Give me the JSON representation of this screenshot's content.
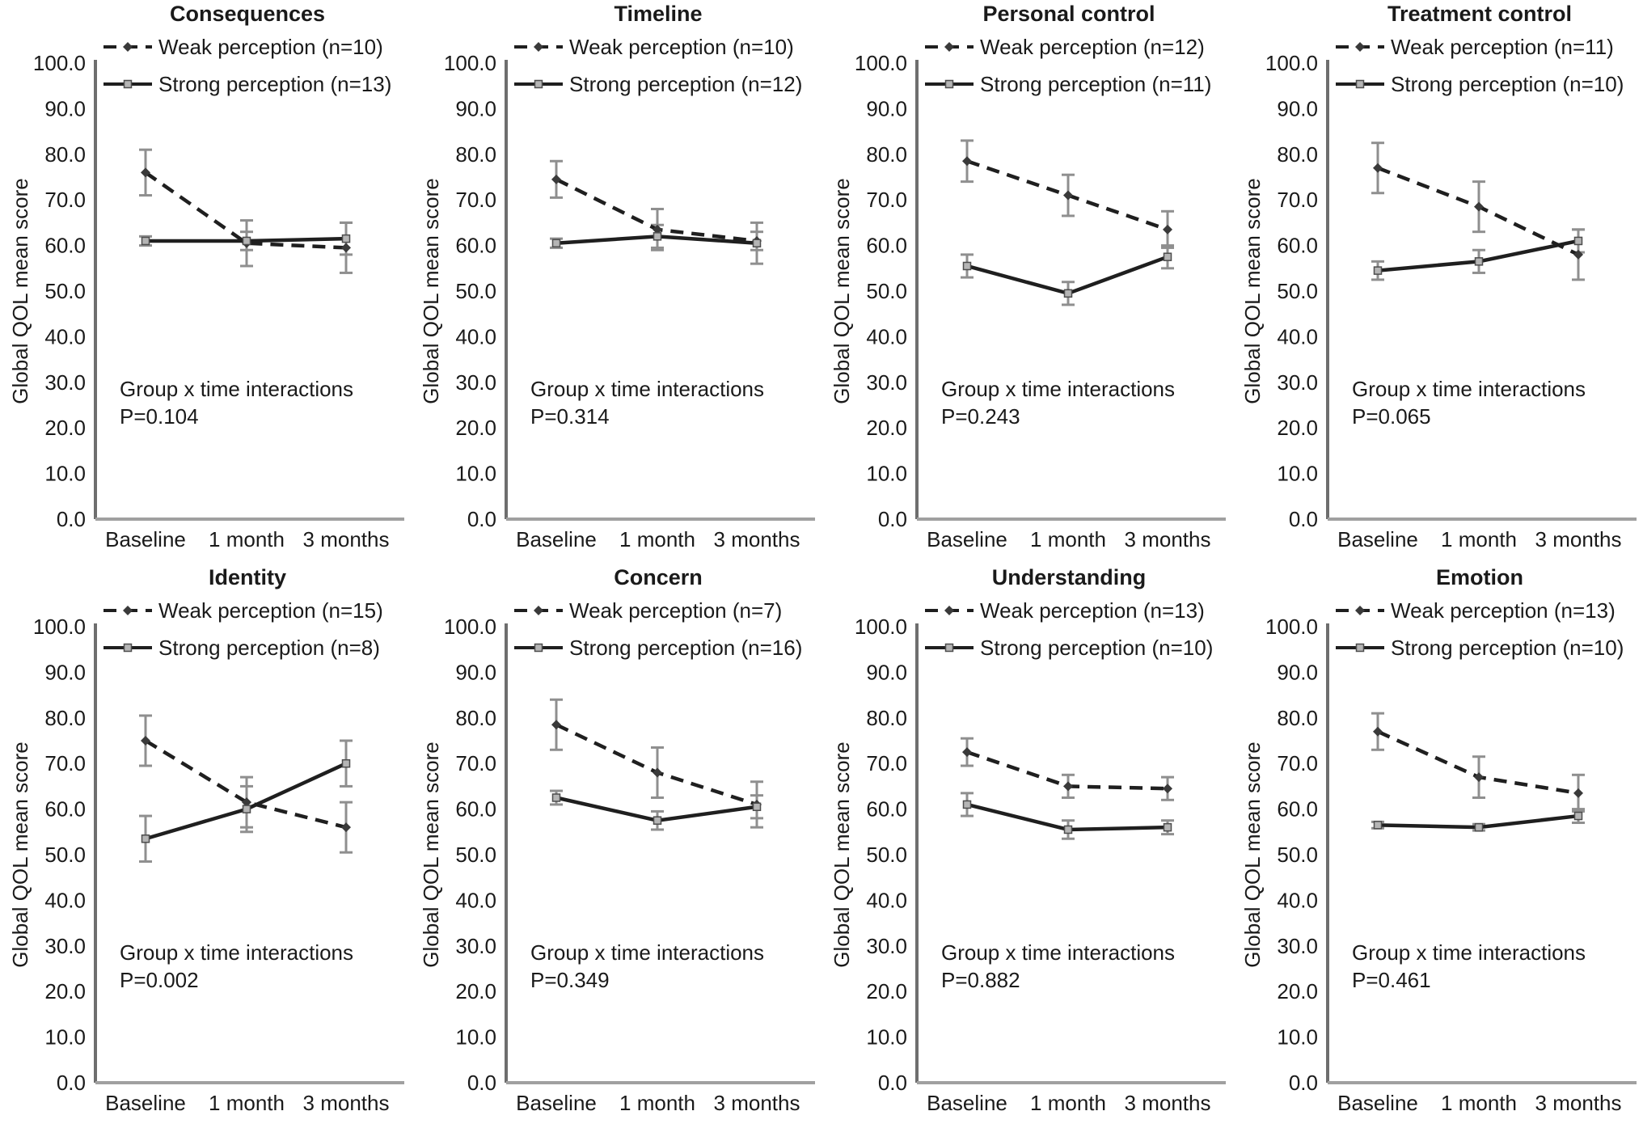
{
  "figure": {
    "ylabel": "Global QOL mean score",
    "x_categories": [
      "Baseline",
      "1 month",
      "3 months"
    ],
    "y_ticks": [
      "100.0",
      "90.0",
      "80.0",
      "70.0",
      "60.0",
      "50.0",
      "40.0",
      "30.0",
      "20.0",
      "10.0",
      "0.0"
    ],
    "annotation_line1": "Group x time interactions",
    "colors": {
      "line": "#1f1f1f",
      "error_bar": "#8f8f8f",
      "marker_fill": "#b5b5b5",
      "marker_stroke": "#4d4d4d",
      "y_axis": "#6e6e6e",
      "x_axis": "#a0a0a0",
      "text": "#1a1a1a"
    }
  },
  "chart_data": [
    {
      "type": "line",
      "title": "Consequences",
      "x": [
        "Baseline",
        "1 month",
        "3 months"
      ],
      "ylim": [
        0,
        100
      ],
      "p_label": "P=0.104",
      "series": [
        {
          "name": "Weak perception (n=10)",
          "style": "dashed",
          "values": [
            76.0,
            60.5,
            59.5
          ],
          "errors": [
            5.0,
            5.0,
            5.5
          ]
        },
        {
          "name": "Strong perception (n=13)",
          "style": "solid",
          "values": [
            61.0,
            61.0,
            61.5
          ],
          "errors": [
            1.0,
            2.0,
            3.5
          ]
        }
      ]
    },
    {
      "type": "line",
      "title": "Timeline",
      "x": [
        "Baseline",
        "1 month",
        "3 months"
      ],
      "ylim": [
        0,
        100
      ],
      "p_label": "P=0.314",
      "series": [
        {
          "name": "Weak perception (n=10)",
          "style": "dashed",
          "values": [
            74.5,
            63.5,
            61.0
          ],
          "errors": [
            4.0,
            4.5,
            2.0
          ]
        },
        {
          "name": "Strong perception (n=12)",
          "style": "solid",
          "values": [
            60.5,
            62.0,
            60.5
          ],
          "errors": [
            1.0,
            2.5,
            4.5
          ]
        }
      ]
    },
    {
      "type": "line",
      "title": "Personal control",
      "x": [
        "Baseline",
        "1 month",
        "3 months"
      ],
      "ylim": [
        0,
        100
      ],
      "p_label": "P=0.243",
      "series": [
        {
          "name": "Weak perception (n=12)",
          "style": "dashed",
          "values": [
            78.5,
            71.0,
            63.5
          ],
          "errors": [
            4.5,
            4.5,
            4.0
          ]
        },
        {
          "name": "Strong perception (n=11)",
          "style": "solid",
          "values": [
            55.5,
            49.5,
            57.5
          ],
          "errors": [
            2.5,
            2.5,
            2.5
          ]
        }
      ]
    },
    {
      "type": "line",
      "title": "Treatment control",
      "x": [
        "Baseline",
        "1 month",
        "3 months"
      ],
      "ylim": [
        0,
        100
      ],
      "p_label": "P=0.065",
      "series": [
        {
          "name": "Weak perception (n=11)",
          "style": "dashed",
          "values": [
            77.0,
            68.5,
            58.0
          ],
          "errors": [
            5.5,
            5.5,
            5.5
          ]
        },
        {
          "name": "Strong perception (n=10)",
          "style": "solid",
          "values": [
            54.5,
            56.5,
            61.0
          ],
          "errors": [
            2.0,
            2.5,
            2.5
          ]
        }
      ]
    },
    {
      "type": "line",
      "title": "Identity",
      "x": [
        "Baseline",
        "1 month",
        "3 months"
      ],
      "ylim": [
        0,
        100
      ],
      "p_label": "P=0.002",
      "series": [
        {
          "name": "Weak perception (n=15)",
          "style": "dashed",
          "values": [
            75.0,
            61.5,
            56.0
          ],
          "errors": [
            5.5,
            5.5,
            5.5
          ]
        },
        {
          "name": "Strong perception (n=8)",
          "style": "solid",
          "values": [
            53.5,
            60.0,
            70.0
          ],
          "errors": [
            5.0,
            5.0,
            5.0
          ]
        }
      ]
    },
    {
      "type": "line",
      "title": "Concern",
      "x": [
        "Baseline",
        "1 month",
        "3 months"
      ],
      "ylim": [
        0,
        100
      ],
      "p_label": "P=0.349",
      "series": [
        {
          "name": "Weak perception (n=7)",
          "style": "dashed",
          "values": [
            78.5,
            68.0,
            61.0
          ],
          "errors": [
            5.5,
            5.5,
            5.0
          ]
        },
        {
          "name": "Strong perception (n=16)",
          "style": "solid",
          "values": [
            62.5,
            57.5,
            60.5
          ],
          "errors": [
            1.5,
            2.0,
            2.5
          ]
        }
      ]
    },
    {
      "type": "line",
      "title": "Understanding",
      "x": [
        "Baseline",
        "1 month",
        "3 months"
      ],
      "ylim": [
        0,
        100
      ],
      "p_label": "P=0.882",
      "series": [
        {
          "name": "Weak perception (n=13)",
          "style": "dashed",
          "values": [
            72.5,
            65.0,
            64.5
          ],
          "errors": [
            3.0,
            2.5,
            2.5
          ]
        },
        {
          "name": "Strong perception (n=10)",
          "style": "solid",
          "values": [
            61.0,
            55.5,
            56.0
          ],
          "errors": [
            2.5,
            2.0,
            1.5
          ]
        }
      ]
    },
    {
      "type": "line",
      "title": "Emotion",
      "x": [
        "Baseline",
        "1 month",
        "3 months"
      ],
      "ylim": [
        0,
        100
      ],
      "p_label": "P=0.461",
      "series": [
        {
          "name": "Weak perception (n=13)",
          "style": "dashed",
          "values": [
            77.0,
            67.0,
            63.5
          ],
          "errors": [
            4.0,
            4.5,
            4.0
          ]
        },
        {
          "name": "Strong perception (n=10)",
          "style": "solid",
          "values": [
            56.5,
            56.0,
            58.5
          ],
          "errors": [
            0.7,
            0.7,
            1.5
          ]
        }
      ]
    }
  ]
}
